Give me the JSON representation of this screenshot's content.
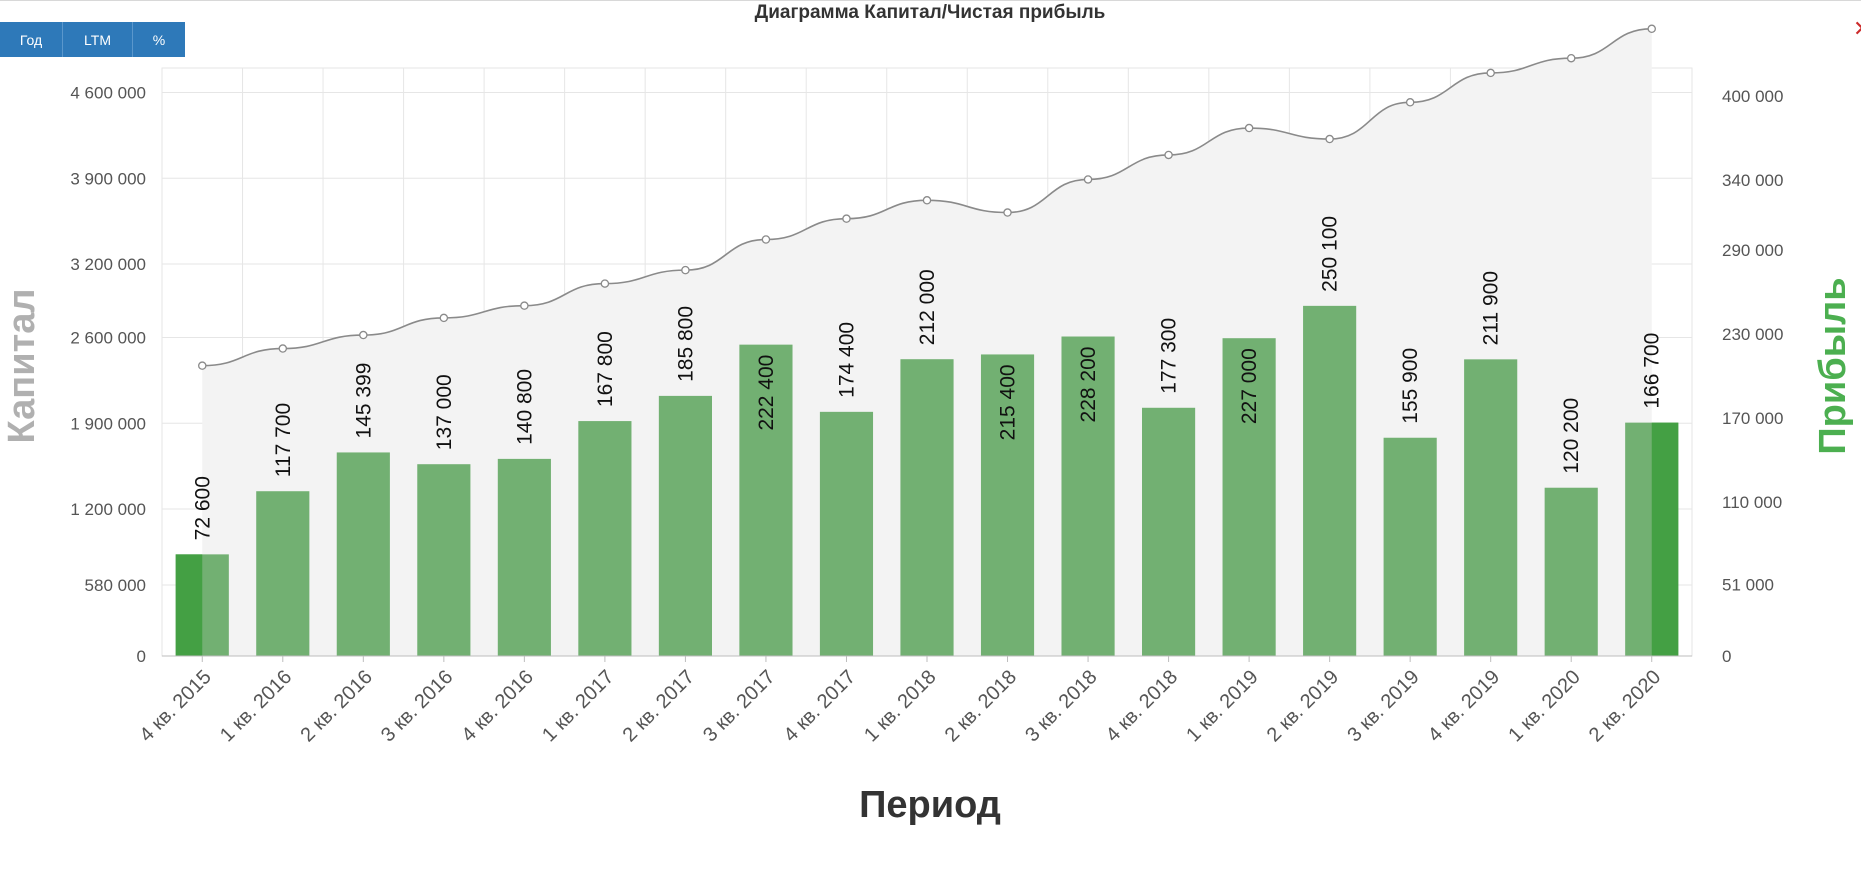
{
  "toolbar": {
    "buttons": [
      "Год",
      "LTM",
      "%"
    ],
    "close_glyph": "✕"
  },
  "chart_data": {
    "type": "bar",
    "title": "Диаграмма Капитал/Чистая прибыль",
    "xlabel": "Период",
    "ylabel_left": "Капитал",
    "ylabel_right": "Прибыль",
    "categories": [
      "4 кв. 2015",
      "1 кв. 2016",
      "2 кв. 2016",
      "3 кв. 2016",
      "4 кв. 2016",
      "1 кв. 2017",
      "2 кв. 2017",
      "3 кв. 2017",
      "4 кв. 2017",
      "1 кв. 2018",
      "2 кв. 2018",
      "3 кв. 2018",
      "4 кв. 2018",
      "1 кв. 2019",
      "2 кв. 2019",
      "3 кв. 2019",
      "4 кв. 2019",
      "1 кв. 2020",
      "2 кв. 2020"
    ],
    "left_axis": {
      "ticks": [
        0,
        580000,
        1200000,
        1900000,
        2600000,
        3200000,
        3900000,
        4600000
      ],
      "tick_labels": [
        "0",
        "580 000",
        "1 200 000",
        "1 900 000",
        "2 600 000",
        "3 200 000",
        "3 900 000",
        "4 600 000"
      ],
      "range": [
        0,
        4800000
      ]
    },
    "right_axis": {
      "ticks": [
        0,
        51000,
        110000,
        170000,
        230000,
        290000,
        340000,
        400000
      ],
      "tick_labels": [
        "0",
        "51 000",
        "110 000",
        "170 000",
        "230 000",
        "290 000",
        "340 000",
        "400 000"
      ],
      "range": [
        0,
        420000
      ]
    },
    "series": [
      {
        "name": "Прибыль",
        "kind": "bar",
        "axis": "right",
        "values": [
          72600,
          117700,
          145399,
          137000,
          140800,
          167800,
          185800,
          222400,
          174400,
          212000,
          215400,
          228200,
          177300,
          227000,
          250100,
          155900,
          211900,
          120200,
          166700
        ],
        "labels": [
          "72 600",
          "117 700",
          "145 399",
          "137 000",
          "140 800",
          "167 800",
          "185 800",
          "222 400",
          "174 400",
          "212 000",
          "215 400",
          "228 200",
          "177 300",
          "227 000",
          "250 100",
          "155 900",
          "211 900",
          "120 200",
          "166 700"
        ]
      },
      {
        "name": "Капитал",
        "kind": "area-line",
        "axis": "left",
        "values": [
          2370000,
          2510000,
          2620000,
          2760000,
          2860000,
          3040000,
          3150000,
          3400000,
          3570000,
          3720000,
          3620000,
          3890000,
          4090000,
          4310000,
          4220000,
          4520000,
          4760000,
          4880000,
          5120000
        ]
      }
    ],
    "grid": true,
    "colors": {
      "bar": "#72b072",
      "bar_highlight": "#44a044",
      "area": "#f3f3f3",
      "line": "#8a8a8a",
      "grid": "#e6e6e6",
      "left_title": "#b0b0b0",
      "right_title": "#4caf50"
    }
  }
}
